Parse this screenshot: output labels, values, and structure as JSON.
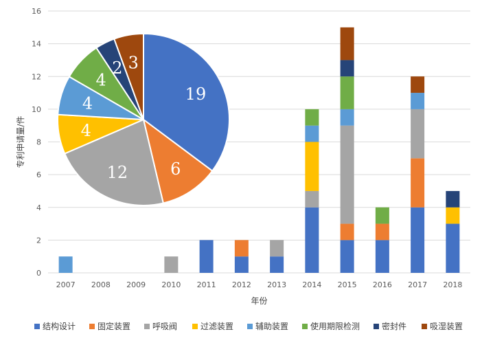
{
  "chart_data": {
    "type": "bar",
    "stacked": true,
    "xlabel": "年份",
    "ylabel": "专利申请量/件",
    "ylim": [
      0,
      16
    ],
    "yticks": [
      0,
      2,
      4,
      6,
      8,
      10,
      12,
      14,
      16
    ],
    "categories": [
      "2007",
      "2008",
      "2009",
      "2010",
      "2011",
      "2012",
      "2013",
      "2014",
      "2015",
      "2016",
      "2017",
      "2018"
    ],
    "legend_position": "bottom",
    "grid": true,
    "series": [
      {
        "name": "结构设计",
        "color": "#4472C4",
        "values": [
          0,
          0,
          0,
          0,
          2,
          1,
          1,
          4,
          2,
          2,
          4,
          3
        ]
      },
      {
        "name": "固定装置",
        "color": "#ED7D31",
        "values": [
          0,
          0,
          0,
          0,
          0,
          1,
          0,
          0,
          1,
          1,
          3,
          0
        ]
      },
      {
        "name": "呼吸阀",
        "color": "#A5A5A5",
        "values": [
          0,
          0,
          0,
          1,
          0,
          0,
          1,
          1,
          6,
          0,
          3,
          0
        ]
      },
      {
        "name": "过滤装置",
        "color": "#FFC000",
        "values": [
          0,
          0,
          0,
          0,
          0,
          0,
          0,
          3,
          0,
          0,
          0,
          1
        ]
      },
      {
        "name": "辅助装置",
        "color": "#5B9BD5",
        "values": [
          1,
          0,
          0,
          0,
          0,
          0,
          0,
          1,
          1,
          0,
          1,
          0
        ]
      },
      {
        "name": "使用期限检测",
        "color": "#70AD47",
        "values": [
          0,
          0,
          0,
          0,
          0,
          0,
          0,
          1,
          2,
          1,
          0,
          0
        ]
      },
      {
        "name": "密封件",
        "color": "#264478",
        "values": [
          0,
          0,
          0,
          0,
          0,
          0,
          0,
          0,
          1,
          0,
          0,
          1
        ]
      },
      {
        "name": "吸湿装置",
        "color": "#9E480E",
        "values": [
          0,
          0,
          0,
          0,
          0,
          0,
          0,
          0,
          2,
          0,
          1,
          0
        ]
      }
    ],
    "pie": {
      "labels": [
        "结构设计",
        "固定装置",
        "呼吸阀",
        "过滤装置",
        "辅助装置",
        "使用期限检测",
        "密封件",
        "吸湿装置"
      ],
      "values": [
        19,
        6,
        12,
        4,
        4,
        4,
        2,
        3
      ],
      "value_labels": [
        "19",
        "6",
        "12",
        "4",
        "4",
        "4",
        "2",
        "3"
      ]
    }
  }
}
